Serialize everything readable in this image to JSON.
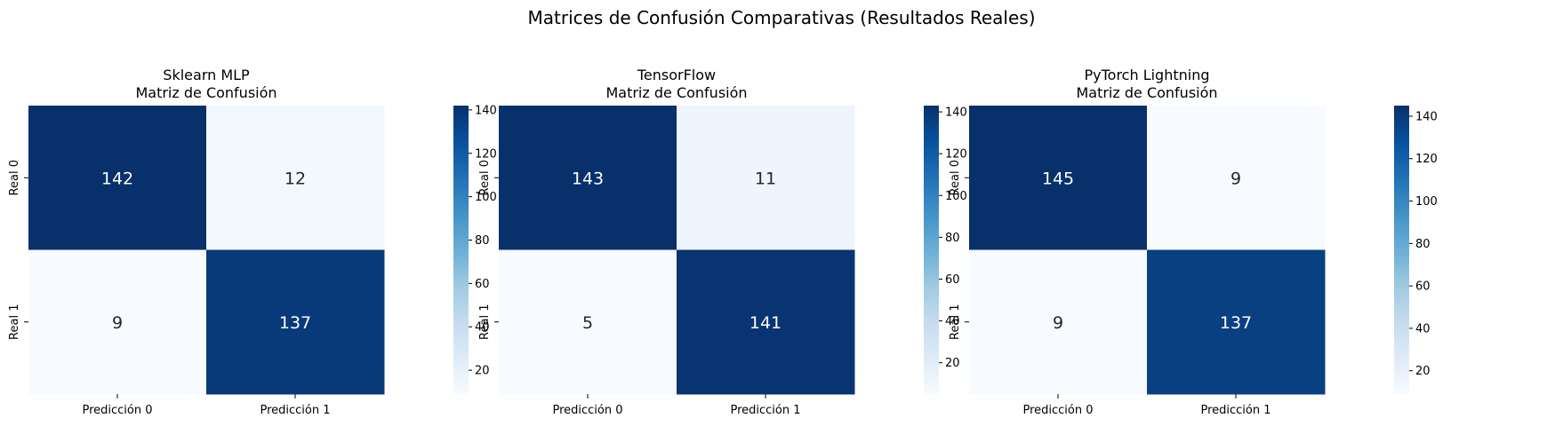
{
  "suptitle": "Matrices de Confusión Comparativas (Resultados Reales)",
  "chart_data": [
    {
      "type": "heatmap",
      "title_line1": "Sklearn MLP",
      "title_line2": "Matriz de Confusión",
      "x_categories": [
        "Predicción 0",
        "Predicción 1"
      ],
      "y_categories": [
        "Real 0",
        "Real 1"
      ],
      "values": [
        [
          142,
          12
        ],
        [
          9,
          137
        ]
      ],
      "colorbar_ticks": [
        20,
        40,
        60,
        80,
        100,
        120,
        140
      ],
      "colormap": "Blues"
    },
    {
      "type": "heatmap",
      "title_line1": "TensorFlow",
      "title_line2": "Matriz de Confusión",
      "x_categories": [
        "Predicción 0",
        "Predicción 1"
      ],
      "y_categories": [
        "Real 0",
        "Real 1"
      ],
      "values": [
        [
          143,
          11
        ],
        [
          5,
          141
        ]
      ],
      "colorbar_ticks": [
        20,
        40,
        60,
        80,
        100,
        120,
        140
      ],
      "colormap": "Blues"
    },
    {
      "type": "heatmap",
      "title_line1": "PyTorch Lightning",
      "title_line2": "Matriz de Confusión",
      "x_categories": [
        "Predicción 0",
        "Predicción 1"
      ],
      "y_categories": [
        "Real 0",
        "Real 1"
      ],
      "values": [
        [
          145,
          9
        ],
        [
          9,
          137
        ]
      ],
      "colorbar_ticks": [
        20,
        40,
        60,
        80,
        100,
        120,
        140
      ],
      "colormap": "Blues"
    }
  ]
}
